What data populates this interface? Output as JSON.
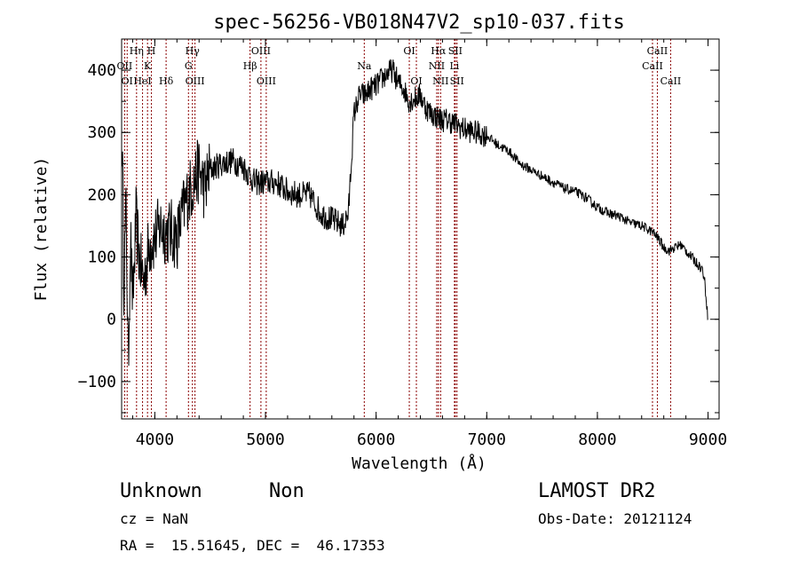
{
  "chart_data": {
    "type": "line",
    "title": "spec-56256-VB018N47V2_sp10-037.fits",
    "xlabel": "Wavelength (Å)",
    "ylabel": "Flux (relative)",
    "xlim": [
      3700,
      9100
    ],
    "ylim": [
      -160,
      450
    ],
    "x_ticks": [
      4000,
      5000,
      6000,
      7000,
      8000,
      9000
    ],
    "y_ticks": [
      -100,
      0,
      100,
      200,
      300,
      400
    ],
    "grid": false,
    "legend": "none",
    "line_color": "#000000",
    "marker_color": "#8b0000",
    "series": [
      {
        "x": [
          3705,
          3720,
          3740,
          3760,
          3780,
          3800,
          3830,
          3860,
          3900,
          3950,
          4000,
          4050,
          4100,
          4150,
          4200,
          4250,
          4300,
          4350,
          4400,
          4450,
          4500,
          4600,
          4700,
          4800,
          4900,
          5000,
          5100,
          5200,
          5300,
          5400,
          5500,
          5600,
          5700,
          5750,
          5800,
          5850,
          5900,
          5950,
          6000,
          6050,
          6100,
          6150,
          6200,
          6250,
          6300,
          6350,
          6400,
          6450,
          6500,
          6550,
          6600,
          6650,
          6700,
          6800,
          6900,
          7000,
          7100,
          7200,
          7300,
          7400,
          7500,
          7600,
          7700,
          7800,
          7900,
          8000,
          8100,
          8200,
          8300,
          8400,
          8500,
          8550,
          8600,
          8650,
          8700,
          8750,
          8800,
          8850,
          8900,
          8950,
          8970,
          8985,
          9000
        ],
        "y": [
          290,
          60,
          180,
          -80,
          140,
          20,
          160,
          100,
          60,
          120,
          130,
          150,
          140,
          140,
          130,
          170,
          200,
          220,
          240,
          210,
          240,
          250,
          255,
          245,
          220,
          220,
          220,
          205,
          200,
          200,
          170,
          160,
          150,
          170,
          330,
          360,
          360,
          370,
          375,
          385,
          395,
          400,
          380,
          370,
          350,
          355,
          360,
          340,
          330,
          325,
          320,
          320,
          315,
          305,
          300,
          295,
          280,
          270,
          250,
          240,
          230,
          220,
          210,
          205,
          195,
          180,
          170,
          165,
          155,
          150,
          140,
          130,
          115,
          110,
          115,
          120,
          110,
          100,
          90,
          80,
          60,
          30,
          0
        ]
      }
    ],
    "lines": [
      {
        "x": 3727,
        "label": "OII",
        "row": 2
      },
      {
        "x": 3750,
        "label": "OI",
        "row": 3
      },
      {
        "x": 3835,
        "label": "Hη",
        "row": 1
      },
      {
        "x": 3889,
        "label": "HeI",
        "row": 3
      },
      {
        "x": 3934,
        "label": "K",
        "row": 2
      },
      {
        "x": 3969,
        "label": "H",
        "row": 1
      },
      {
        "x": 4102,
        "label": "Hδ",
        "row": 3
      },
      {
        "x": 4304,
        "label": "G",
        "row": 2
      },
      {
        "x": 4340,
        "label": "Hγ",
        "row": 1
      },
      {
        "x": 4363,
        "label": "OIII",
        "row": 3
      },
      {
        "x": 4861,
        "label": "Hβ",
        "row": 2
      },
      {
        "x": 4959,
        "label": "OIII",
        "row": 1
      },
      {
        "x": 5007,
        "label": "OIII",
        "row": 3
      },
      {
        "x": 5893,
        "label": "Na",
        "row": 2
      },
      {
        "x": 6300,
        "label": "OI",
        "row": 1
      },
      {
        "x": 6364,
        "label": "OI",
        "row": 3
      },
      {
        "x": 6548,
        "label": "NII",
        "row": 2
      },
      {
        "x": 6563,
        "label": "Hα",
        "row": 1
      },
      {
        "x": 6583,
        "label": "NII",
        "row": 3
      },
      {
        "x": 6708,
        "label": "Li",
        "row": 2
      },
      {
        "x": 6716,
        "label": "SII",
        "row": 1
      },
      {
        "x": 6731,
        "label": "SII",
        "row": 3
      },
      {
        "x": 8498,
        "label": "CaII",
        "row": 2
      },
      {
        "x": 8542,
        "label": "CaII",
        "row": 1
      },
      {
        "x": 8662,
        "label": "CaII",
        "row": 3
      }
    ]
  },
  "info": {
    "class": "Unknown",
    "subclass": "Non",
    "survey": "LAMOST DR2",
    "cz": "cz = NaN",
    "obs_date": "Obs-Date: 20121124",
    "coords": "RA =  15.51645, DEC =  46.17353"
  }
}
